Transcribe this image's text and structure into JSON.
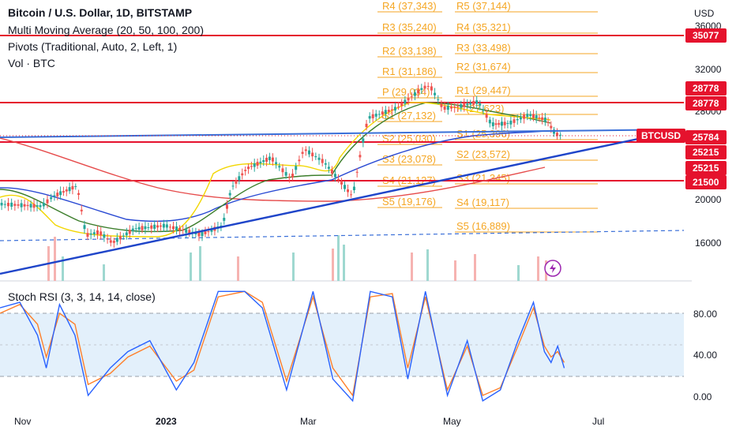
{
  "header": {
    "title": "Bitcoin / U.S. Dollar, 1D, BITSTAMP",
    "ma_label": "Multi Moving Average (20, 50, 100, 200)",
    "pivots_label": "Pivots (Traditional, Auto, 2, Left, 1)",
    "vol_label": "Vol · BTC",
    "stoch_label": "Stoch RSI (3, 3, 14, 14, close)"
  },
  "colors": {
    "up": "#26a69a",
    "down": "#ef5350",
    "pivot": "#f5a623",
    "red_level": "#e5122d",
    "trend": "#1f45c9",
    "price_line": "#3a6fd8",
    "ma20": "#f2d600",
    "ma50": "#3b7d2a",
    "ma100": "#2a4ad3",
    "ma200": "#e64b4b",
    "stoch_k": "#2962ff",
    "stoch_d": "#ff7f2a",
    "stoch_band": "#e3f0fb"
  },
  "price_axis": {
    "currency": "USD",
    "labels": [
      "36000",
      "32000",
      "28000",
      "20000",
      "16000"
    ],
    "tags": [
      {
        "label": "35077",
        "kind": "level"
      },
      {
        "label": "28778",
        "kind": "level"
      },
      {
        "label": "28778",
        "kind": "level"
      },
      {
        "label": "BTCUSD",
        "kind": "symbol"
      },
      {
        "label": "25784",
        "kind": "level"
      },
      {
        "label": "25215",
        "kind": "level"
      },
      {
        "label": "25215",
        "kind": "level"
      },
      {
        "label": "21500",
        "kind": "level"
      }
    ]
  },
  "stoch_axis": {
    "labels": [
      "80.00",
      "40.00",
      "0.00"
    ]
  },
  "time_axis": {
    "labels": [
      "Nov",
      "2023",
      "Mar",
      "May",
      "Jul"
    ]
  },
  "pivots_left": [
    "R4 (37,343)",
    "R3 (35,240)",
    "R2 (33,138)",
    "R1 (31,186)",
    "P (29,034)",
    "S1 (27,132)",
    "S2 (25,030)",
    "S3 (23,078)",
    "S4 (21,127)",
    "S5 (19,176)"
  ],
  "pivots_right": [
    "R5 (37,144)",
    "R4 (35,321)",
    "R3 (33,498)",
    "R2 (31,674)",
    "R1 (29,447)",
    "P (27,623)",
    "S1 (25,396)",
    "S2 (23,572)",
    "S3 (21,345)",
    "S4 (19,117)",
    "S5 (16,889)"
  ],
  "chart_data": {
    "type": "candlestick",
    "symbol": "BTCUSD",
    "interval": "1D",
    "y_range": [
      14000,
      37000
    ],
    "last_price": 25784,
    "levels": [
      35077,
      28778,
      25215,
      21500
    ],
    "close_series": [
      {
        "date": "2022-10-01",
        "value": 19400
      },
      {
        "date": "2022-10-10",
        "value": 19300
      },
      {
        "date": "2022-10-20",
        "value": 19200
      },
      {
        "date": "2022-10-25",
        "value": 20100
      },
      {
        "date": "2022-11-05",
        "value": 21100
      },
      {
        "date": "2022-11-09",
        "value": 16500
      },
      {
        "date": "2022-11-15",
        "value": 16800
      },
      {
        "date": "2022-11-21",
        "value": 15800
      },
      {
        "date": "2022-12-01",
        "value": 17100
      },
      {
        "date": "2022-12-15",
        "value": 17400
      },
      {
        "date": "2022-12-31",
        "value": 16550
      },
      {
        "date": "2023-01-10",
        "value": 17400
      },
      {
        "date": "2023-01-14",
        "value": 20900
      },
      {
        "date": "2023-01-21",
        "value": 22700
      },
      {
        "date": "2023-02-01",
        "value": 23700
      },
      {
        "date": "2023-02-10",
        "value": 21700
      },
      {
        "date": "2023-02-16",
        "value": 24500
      },
      {
        "date": "2023-02-25",
        "value": 23300
      },
      {
        "date": "2023-03-10",
        "value": 20100
      },
      {
        "date": "2023-03-14",
        "value": 24600
      },
      {
        "date": "2023-03-17",
        "value": 27400
      },
      {
        "date": "2023-03-30",
        "value": 28300
      },
      {
        "date": "2023-04-11",
        "value": 30200
      },
      {
        "date": "2023-04-14",
        "value": 30400
      },
      {
        "date": "2023-04-20",
        "value": 28300
      },
      {
        "date": "2023-04-26",
        "value": 28400
      },
      {
        "date": "2023-05-06",
        "value": 28900
      },
      {
        "date": "2023-05-12",
        "value": 26800
      },
      {
        "date": "2023-05-20",
        "value": 26900
      },
      {
        "date": "2023-05-29",
        "value": 27700
      },
      {
        "date": "2023-06-06",
        "value": 27200
      },
      {
        "date": "2023-06-10",
        "value": 25900
      },
      {
        "date": "2023-06-13",
        "value": 25784
      }
    ],
    "stoch_rsi": {
      "upper_band": 80,
      "lower_band": 20,
      "middle": 50,
      "k": [
        {
          "date": "2022-10-01",
          "value": 85
        },
        {
          "date": "2022-10-10",
          "value": 90
        },
        {
          "date": "2022-10-18",
          "value": 60
        },
        {
          "date": "2022-10-22",
          "value": 30
        },
        {
          "date": "2022-10-28",
          "value": 88
        },
        {
          "date": "2022-11-04",
          "value": 60
        },
        {
          "date": "2022-11-10",
          "value": 5
        },
        {
          "date": "2022-11-20",
          "value": 30
        },
        {
          "date": "2022-11-28",
          "value": 45
        },
        {
          "date": "2022-12-08",
          "value": 55
        },
        {
          "date": "2022-12-20",
          "value": 10
        },
        {
          "date": "2022-12-28",
          "value": 35
        },
        {
          "date": "2023-01-08",
          "value": 100
        },
        {
          "date": "2023-01-20",
          "value": 100
        },
        {
          "date": "2023-01-28",
          "value": 85
        },
        {
          "date": "2023-02-08",
          "value": 10
        },
        {
          "date": "2023-02-20",
          "value": 100
        },
        {
          "date": "2023-03-01",
          "value": 20
        },
        {
          "date": "2023-03-10",
          "value": 0
        },
        {
          "date": "2023-03-18",
          "value": 100
        },
        {
          "date": "2023-03-28",
          "value": 95
        },
        {
          "date": "2023-04-04",
          "value": 20
        },
        {
          "date": "2023-04-12",
          "value": 100
        },
        {
          "date": "2023-04-22",
          "value": 5
        },
        {
          "date": "2023-05-01",
          "value": 55
        },
        {
          "date": "2023-05-08",
          "value": 0
        },
        {
          "date": "2023-05-16",
          "value": 10
        },
        {
          "date": "2023-05-24",
          "value": 55
        },
        {
          "date": "2023-05-31",
          "value": 90
        },
        {
          "date": "2023-06-05",
          "value": 45
        },
        {
          "date": "2023-06-08",
          "value": 35
        },
        {
          "date": "2023-06-11",
          "value": 50
        },
        {
          "date": "2023-06-14",
          "value": 30
        }
      ],
      "d": [
        {
          "date": "2022-10-01",
          "value": 80
        },
        {
          "date": "2022-10-10",
          "value": 88
        },
        {
          "date": "2022-10-18",
          "value": 70
        },
        {
          "date": "2022-10-22",
          "value": 40
        },
        {
          "date": "2022-10-28",
          "value": 80
        },
        {
          "date": "2022-11-04",
          "value": 70
        },
        {
          "date": "2022-11-10",
          "value": 15
        },
        {
          "date": "2022-11-20",
          "value": 25
        },
        {
          "date": "2022-11-28",
          "value": 40
        },
        {
          "date": "2022-12-08",
          "value": 50
        },
        {
          "date": "2022-12-20",
          "value": 18
        },
        {
          "date": "2022-12-28",
          "value": 28
        },
        {
          "date": "2023-01-08",
          "value": 95
        },
        {
          "date": "2023-01-20",
          "value": 100
        },
        {
          "date": "2023-01-28",
          "value": 90
        },
        {
          "date": "2023-02-08",
          "value": 18
        },
        {
          "date": "2023-02-20",
          "value": 95
        },
        {
          "date": "2023-03-01",
          "value": 30
        },
        {
          "date": "2023-03-10",
          "value": 5
        },
        {
          "date": "2023-03-18",
          "value": 95
        },
        {
          "date": "2023-03-28",
          "value": 98
        },
        {
          "date": "2023-04-04",
          "value": 30
        },
        {
          "date": "2023-04-12",
          "value": 95
        },
        {
          "date": "2023-04-22",
          "value": 10
        },
        {
          "date": "2023-05-01",
          "value": 50
        },
        {
          "date": "2023-05-08",
          "value": 5
        },
        {
          "date": "2023-05-16",
          "value": 12
        },
        {
          "date": "2023-05-24",
          "value": 50
        },
        {
          "date": "2023-05-31",
          "value": 85
        },
        {
          "date": "2023-06-05",
          "value": 50
        },
        {
          "date": "2023-06-08",
          "value": 40
        },
        {
          "date": "2023-06-11",
          "value": 45
        },
        {
          "date": "2023-06-14",
          "value": 35
        }
      ]
    }
  }
}
